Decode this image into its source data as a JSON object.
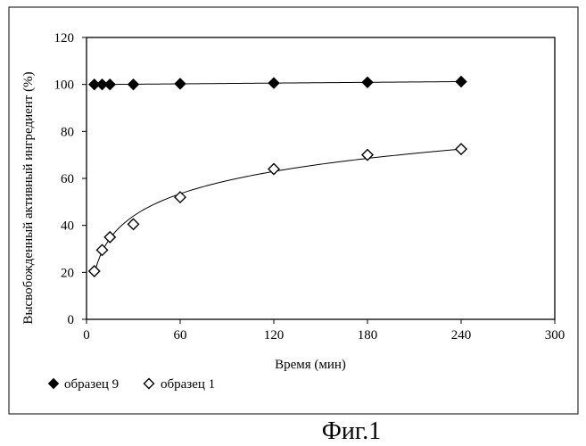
{
  "chart_data": {
    "type": "scatter",
    "xlabel": "Время (мин)",
    "ylabel": "Высвобожденный активный ингредиент (%)",
    "xlim": [
      0,
      300
    ],
    "ylim": [
      0,
      120
    ],
    "x_ticks": [
      0,
      60,
      120,
      180,
      240,
      300
    ],
    "y_ticks": [
      0,
      20,
      40,
      60,
      80,
      100,
      120
    ],
    "grid": false,
    "legend_position": "bottom-left",
    "series": [
      {
        "name": "образец 9",
        "marker": "filled-diamond",
        "color": "#000000",
        "trendline": true,
        "points": [
          [
            5,
            100
          ],
          [
            10,
            100
          ],
          [
            15,
            100
          ],
          [
            30,
            100
          ],
          [
            60,
            100.3
          ],
          [
            120,
            100.6
          ],
          [
            180,
            100.9
          ],
          [
            240,
            101.2
          ]
        ]
      },
      {
        "name": "образец 1",
        "marker": "open-diamond",
        "color": "#000000",
        "trendline": true,
        "points": [
          [
            5,
            20.5
          ],
          [
            10,
            29.5
          ],
          [
            15,
            35
          ],
          [
            30,
            40.5
          ],
          [
            60,
            52
          ],
          [
            120,
            64
          ],
          [
            180,
            70
          ],
          [
            240,
            72.5
          ]
        ]
      }
    ]
  },
  "caption": "Фиг.1"
}
